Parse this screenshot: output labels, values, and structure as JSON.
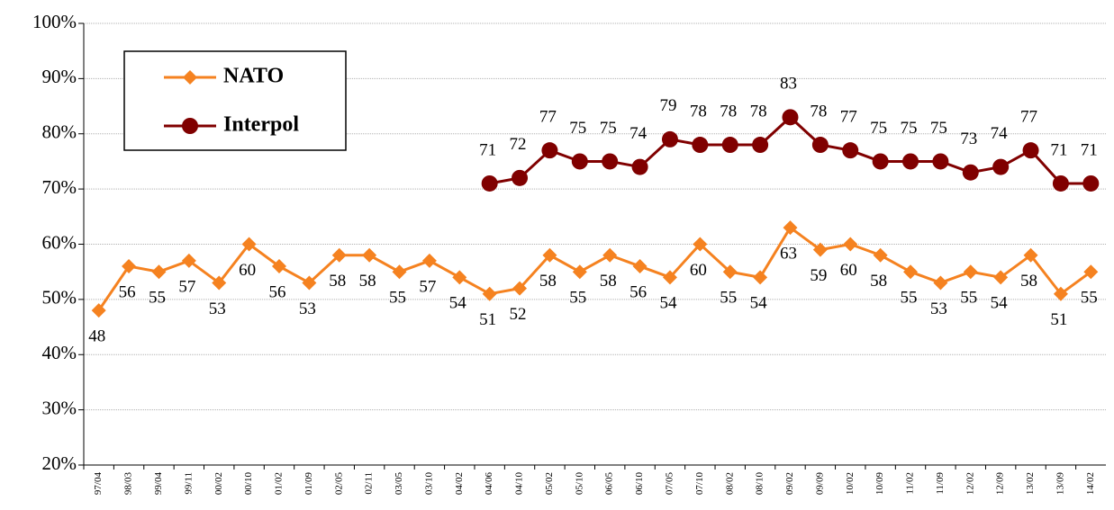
{
  "chart_data": {
    "type": "line",
    "categories": [
      "97/04",
      "98/03",
      "99/04",
      "99/11",
      "00/02",
      "00/10",
      "01/02",
      "01/09",
      "02/05",
      "02/11",
      "03/05",
      "03/10",
      "04/02",
      "04/06",
      "04/10",
      "05/02",
      "05/10",
      "06/05",
      "06/10",
      "07/05",
      "07/10",
      "08/02",
      "08/10",
      "09/02",
      "09/09",
      "10/02",
      "10/09",
      "11/02",
      "11/09",
      "12/02",
      "12/09",
      "13/02",
      "13/09",
      "14/02"
    ],
    "series": [
      {
        "name": "NATO",
        "color": "#f58220",
        "marker": "diamond",
        "values": [
          48,
          56,
          55,
          57,
          53,
          60,
          56,
          53,
          58,
          58,
          55,
          57,
          54,
          51,
          52,
          58,
          55,
          58,
          56,
          54,
          60,
          55,
          54,
          63,
          59,
          60,
          58,
          55,
          53,
          55,
          54,
          58,
          51,
          55
        ]
      },
      {
        "name": "Interpol",
        "color": "#800000",
        "marker": "circle",
        "values": [
          null,
          null,
          null,
          null,
          null,
          null,
          null,
          null,
          null,
          null,
          null,
          null,
          null,
          71,
          72,
          77,
          75,
          75,
          74,
          79,
          78,
          78,
          78,
          83,
          78,
          77,
          75,
          75,
          75,
          73,
          74,
          77,
          71,
          71
        ]
      }
    ],
    "ylim": [
      20,
      100
    ],
    "yticks": [
      {
        "value": 20,
        "label": "20%"
      },
      {
        "value": 30,
        "label": "30%"
      },
      {
        "value": 40,
        "label": "40%"
      },
      {
        "value": 50,
        "label": "50%"
      },
      {
        "value": 60,
        "label": "60%"
      },
      {
        "value": 70,
        "label": "70%"
      },
      {
        "value": 80,
        "label": "80%"
      },
      {
        "value": 90,
        "label": "90%"
      },
      {
        "value": 100,
        "label": "100%"
      }
    ],
    "grid": true,
    "legend": "upper left"
  }
}
